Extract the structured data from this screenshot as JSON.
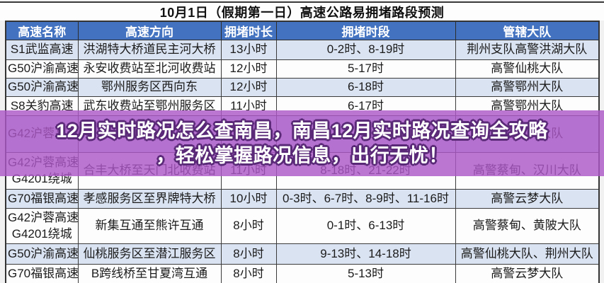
{
  "page": {
    "title": "10月1日（假期第一日）高速公路易拥堵路段预测"
  },
  "table": {
    "headers": [
      "高速名称",
      "高速方向",
      "拥堵时长",
      "拥堵时段",
      "管辖大队"
    ],
    "rows": [
      {
        "name": "S1武监高速",
        "direction": "洪湖特大桥道民主河大桥",
        "duration": "13小时",
        "period": "0-2时、8-19时",
        "dept": "荆州支队高警洪湖大队"
      },
      {
        "name": "G50沪渝高速",
        "direction": "永安收费站至北河收费站",
        "duration": "12小时",
        "period": "5-17时",
        "dept": "高警仙桃大队"
      },
      {
        "name": "G50沪渝高速",
        "direction": "鄂州服务区西向东",
        "duration": "12小时",
        "period": "6-18时",
        "dept": "高警鄂州大队"
      },
      {
        "name": "S8关豹高速",
        "direction": "武东收费站至鄂州服务区",
        "duration": "11小时",
        "period": "6-17时",
        "dept": "高警鄂州大队"
      },
      {
        "name": "G42沪蓉高速",
        "direction": "",
        "duration": "",
        "period": "",
        "dept": "",
        "dept2": "高警汉川大队"
      },
      {
        "name": "G42沪蓉高速",
        "name2": "G4201绕城",
        "direction": "合丰大桥至天门北收费站",
        "duration": "11小时",
        "period": "8-18时、21-22时",
        "dept": "高警蔡甸、汉川大队"
      },
      {
        "name": "G70福银高速",
        "direction": "孝感服务区至界牌特大桥",
        "duration": "10小时",
        "period": "0-3时、6-7时、8-9时、11-16时",
        "dept": "高警云梦大队"
      },
      {
        "name": "G42沪蓉高速",
        "name2": "G4201绕城",
        "direction": "新集互通至熊许互通",
        "duration": "8小时",
        "period": "0-1时、6-13时",
        "dept": "高警蔡甸、黄陂大队"
      },
      {
        "name": "G50沪渝高速",
        "direction": "仙桃服务区至潜江服务区",
        "duration": "8小时",
        "period": "9-13时、14-18时",
        "dept": "高警仙桃大队、荆州大队"
      },
      {
        "name": "G70福银高速",
        "direction": "B跨线桥至甘夏湾互通",
        "duration": "8小时",
        "period": "5-13时",
        "dept": "高警云梦大队"
      }
    ]
  },
  "overlay": {
    "line1": "12月实时路况怎么查南昌，南昌12月实时路况查询全攻略",
    "line2": "，轻松掌握路况信息，出行无忧！"
  },
  "colors": {
    "header_bg": "#4272C0",
    "row_alt_bg": "#DAE3F2",
    "row_bg": "#FDFDFD",
    "overlay_purple": "#AC58C7",
    "overlay_text": "#FFFFFF",
    "overlay_outline": "#5A2A78",
    "border": "#3B3B3B",
    "title_text": "#101010"
  }
}
